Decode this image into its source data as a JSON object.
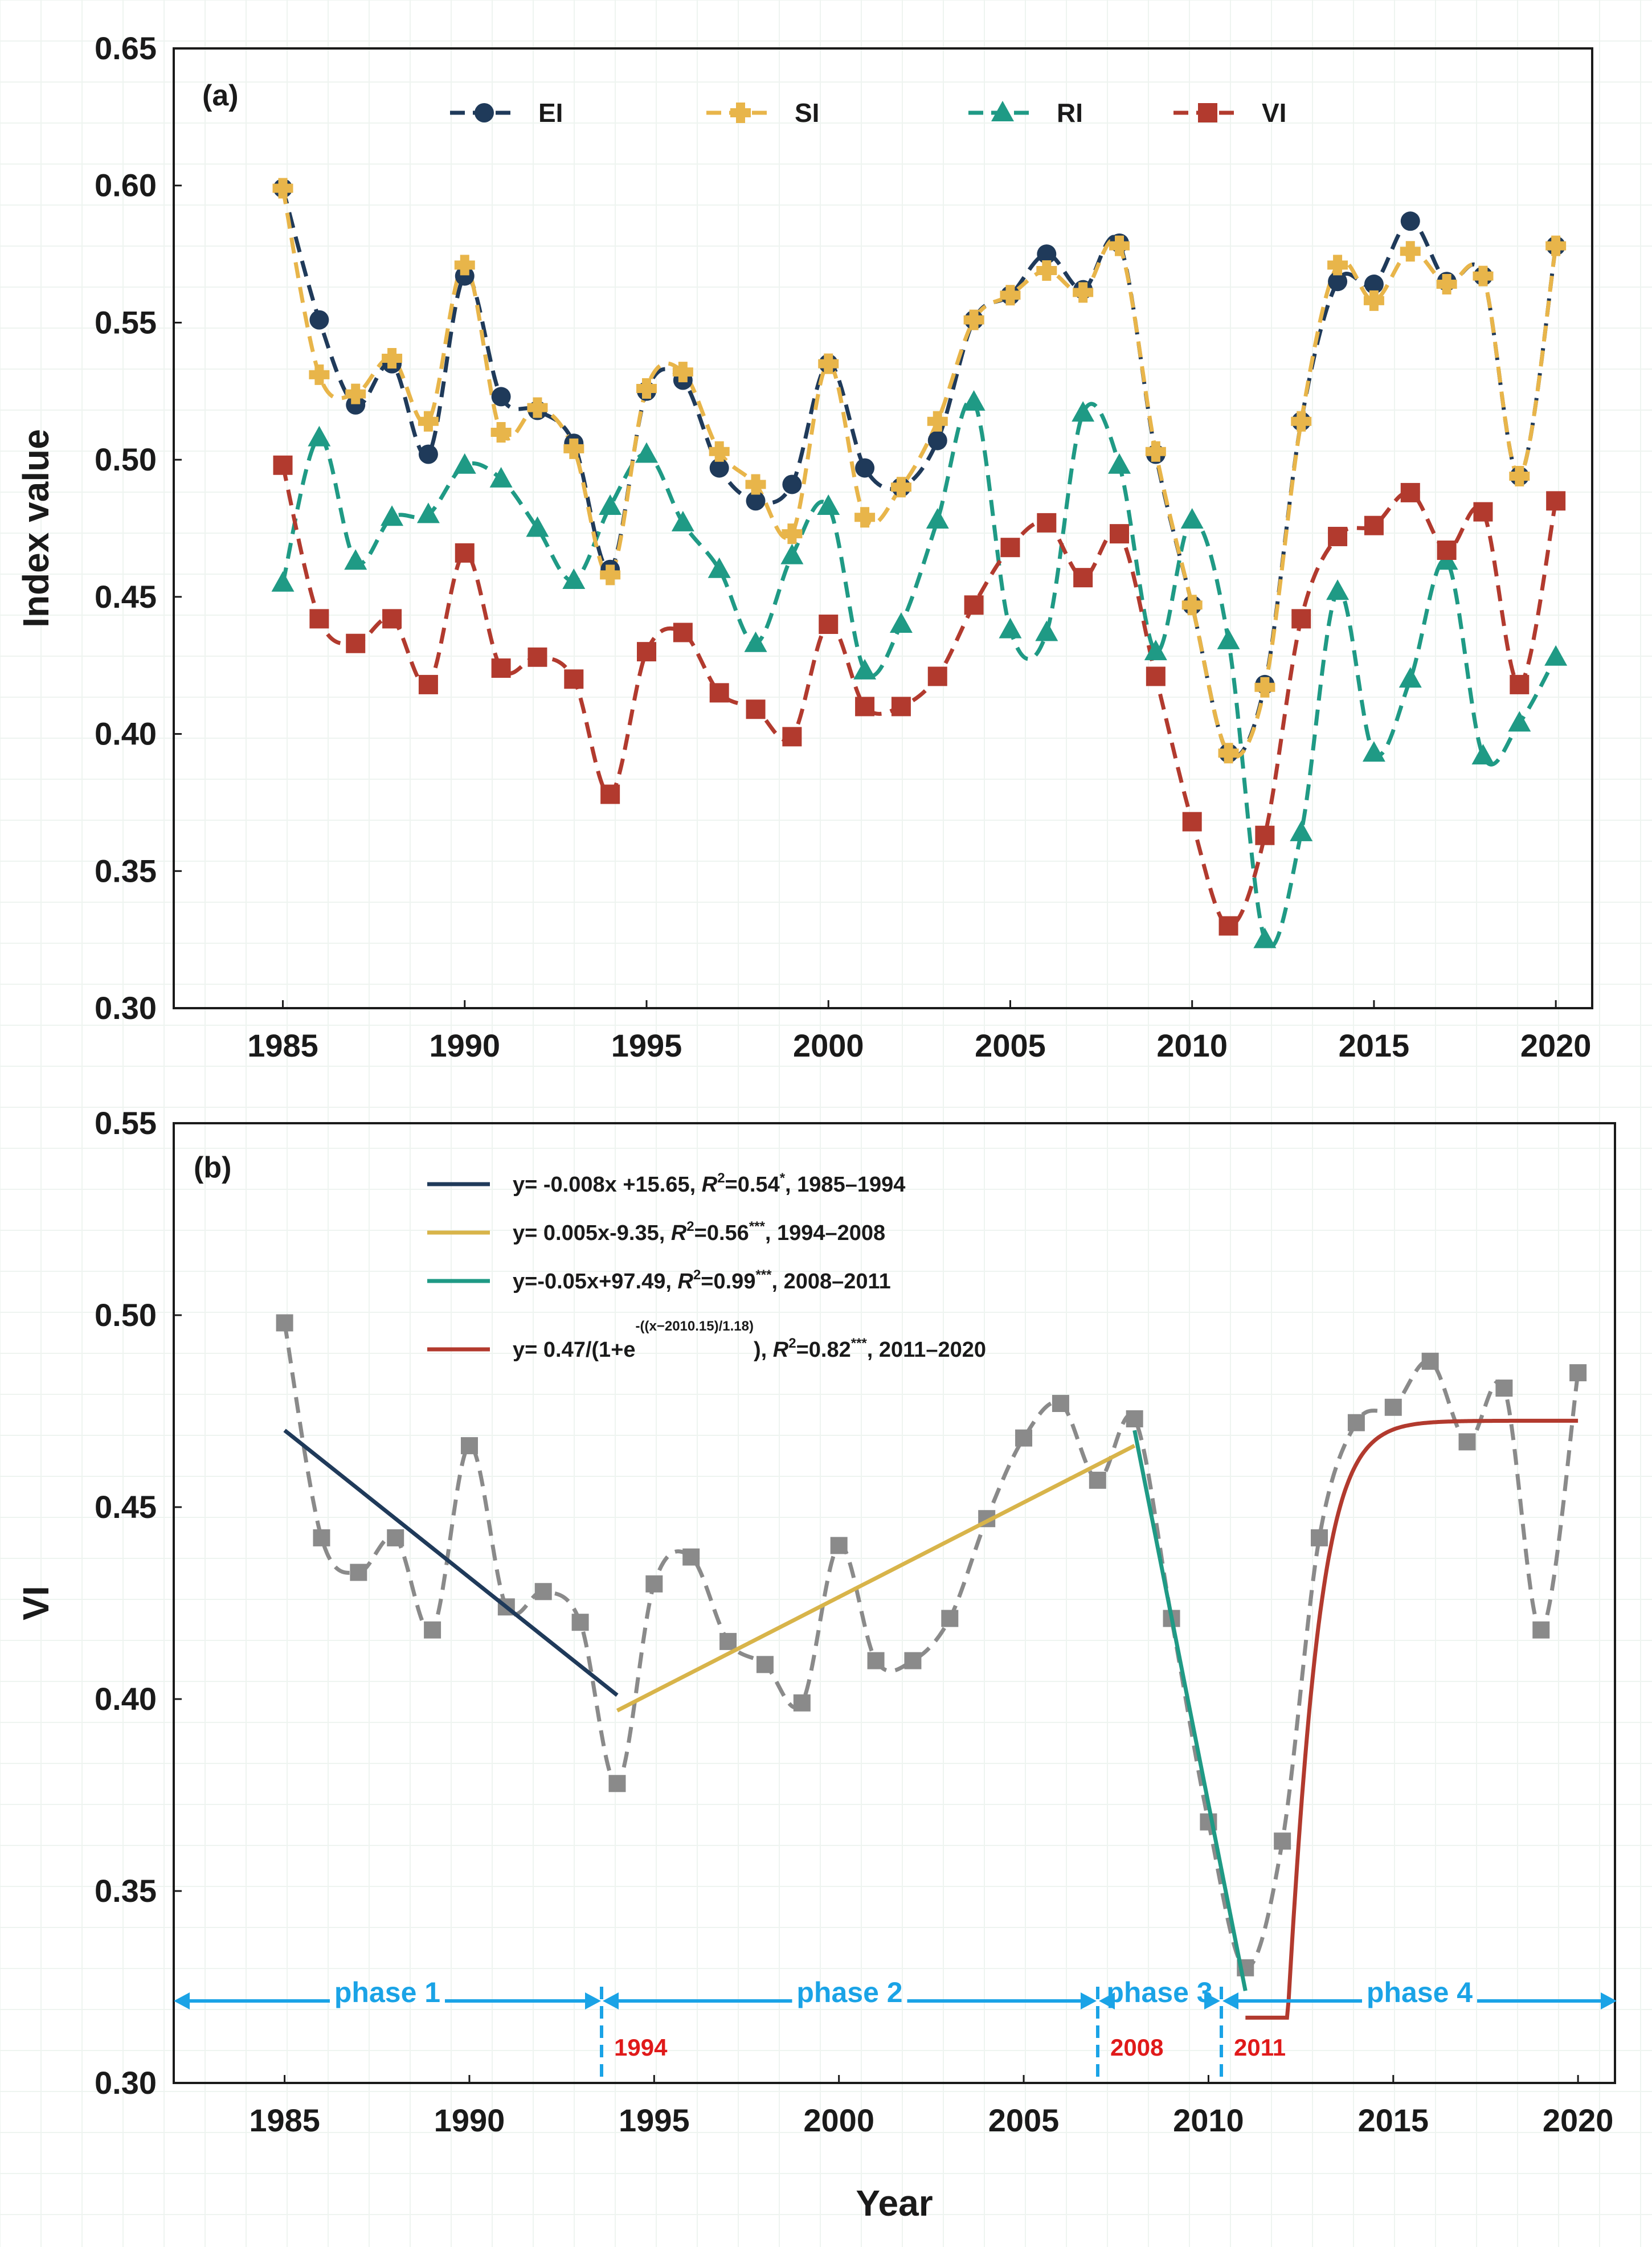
{
  "chart_data": [
    {
      "panel": "(a)",
      "type": "line",
      "ylabel": "Index value",
      "xlabel": "",
      "xlim": [
        1982,
        2021
      ],
      "ylim": [
        0.3,
        0.65
      ],
      "yticks": [
        "0.30",
        "0.35",
        "0.40",
        "0.45",
        "0.50",
        "0.55",
        "0.60",
        "0.65"
      ],
      "xticks": [
        "1985",
        "1990",
        "1995",
        "2000",
        "2005",
        "2010",
        "2015",
        "2020"
      ],
      "grid": true,
      "legend_position": "top",
      "x": [
        1985,
        1986,
        1987,
        1988,
        1989,
        1990,
        1991,
        1992,
        1993,
        1994,
        1995,
        1996,
        1997,
        1998,
        1999,
        2000,
        2001,
        2002,
        2003,
        2004,
        2005,
        2006,
        2007,
        2008,
        2009,
        2010,
        2011,
        2012,
        2013,
        2014,
        2015,
        2016,
        2017,
        2018,
        2019,
        2020
      ],
      "series": [
        {
          "name": "EI",
          "color": "#1f3a5a",
          "marker": "circle",
          "values": [
            0.599,
            0.551,
            0.52,
            0.535,
            0.502,
            0.567,
            0.523,
            0.518,
            0.506,
            0.46,
            0.525,
            0.529,
            0.497,
            0.485,
            0.491,
            0.535,
            0.497,
            0.49,
            0.507,
            0.551,
            0.56,
            0.575,
            0.562,
            0.579,
            0.502,
            0.447,
            0.393,
            0.418,
            0.514,
            0.565,
            0.564,
            0.587,
            0.565,
            0.567,
            0.494,
            0.578
          ]
        },
        {
          "name": "SI",
          "color": "#e8b54a",
          "marker": "cross",
          "values": [
            0.599,
            0.531,
            0.524,
            0.537,
            0.514,
            0.571,
            0.51,
            0.519,
            0.504,
            0.458,
            0.526,
            0.532,
            0.503,
            0.491,
            0.473,
            0.535,
            0.479,
            0.49,
            0.514,
            0.551,
            0.56,
            0.569,
            0.561,
            0.578,
            0.503,
            0.447,
            0.393,
            0.417,
            0.514,
            0.571,
            0.558,
            0.576,
            0.564,
            0.567,
            0.494,
            0.578
          ]
        },
        {
          "name": "RI",
          "color": "#1f9a85",
          "marker": "triangle",
          "values": [
            0.455,
            0.508,
            0.463,
            0.479,
            0.48,
            0.498,
            0.493,
            0.475,
            0.456,
            0.483,
            0.502,
            0.477,
            0.46,
            0.433,
            0.465,
            0.483,
            0.423,
            0.44,
            0.478,
            0.521,
            0.438,
            0.437,
            0.517,
            0.498,
            0.43,
            0.478,
            0.434,
            0.325,
            0.364,
            0.452,
            0.393,
            0.42,
            0.463,
            0.392,
            0.404,
            0.428
          ]
        },
        {
          "name": "VI",
          "color": "#b23a2e",
          "marker": "square",
          "values": [
            0.498,
            0.442,
            0.433,
            0.442,
            0.418,
            0.466,
            0.424,
            0.428,
            0.42,
            0.378,
            0.43,
            0.437,
            0.415,
            0.409,
            0.399,
            0.44,
            0.41,
            0.41,
            0.421,
            0.447,
            0.468,
            0.477,
            0.457,
            0.473,
            0.421,
            0.368,
            0.33,
            0.363,
            0.442,
            0.472,
            0.476,
            0.488,
            0.467,
            0.481,
            0.418,
            0.485
          ]
        }
      ]
    },
    {
      "panel": "(b)",
      "type": "line",
      "ylabel": "VI",
      "xlabel": "Year",
      "xlim": [
        1982,
        2021
      ],
      "ylim": [
        0.3,
        0.55
      ],
      "yticks": [
        "0.30",
        "0.35",
        "0.40",
        "0.45",
        "0.50",
        "0.55"
      ],
      "xticks": [
        "1985",
        "1990",
        "1995",
        "2000",
        "2005",
        "2010",
        "2015",
        "2020"
      ],
      "grid": true,
      "series_color": "#8a8a8a",
      "x": [
        1985,
        1986,
        1987,
        1988,
        1989,
        1990,
        1991,
        1992,
        1993,
        1994,
        1995,
        1996,
        1997,
        1998,
        1999,
        2000,
        2001,
        2002,
        2003,
        2004,
        2005,
        2006,
        2007,
        2008,
        2009,
        2010,
        2011,
        2012,
        2013,
        2014,
        2015,
        2016,
        2017,
        2018,
        2019,
        2020
      ],
      "values": [
        0.498,
        0.442,
        0.433,
        0.442,
        0.418,
        0.466,
        0.424,
        0.428,
        0.42,
        0.378,
        0.43,
        0.437,
        0.415,
        0.409,
        0.399,
        0.44,
        0.41,
        0.41,
        0.421,
        0.447,
        0.468,
        0.477,
        0.457,
        0.473,
        0.421,
        0.368,
        0.33,
        0.363,
        0.442,
        0.472,
        0.476,
        0.488,
        0.467,
        0.481,
        0.418,
        0.485
      ],
      "fits": [
        {
          "color": "#1f3a5a",
          "type": "linear",
          "x0": 1985,
          "x1": 1994,
          "y0": 0.47,
          "y1": 0.401,
          "eq": "y= -0.008x +15.65, ",
          "r2": "=0.54",
          "sig": "*",
          "period": ", 1985–1994"
        },
        {
          "color": "#d8b44a",
          "type": "linear",
          "x0": 1994,
          "x1": 2008,
          "y0": 0.397,
          "y1": 0.466,
          "eq": "y= 0.005x-9.35, ",
          "r2": "=0.56",
          "sig": "***",
          "period": ", 1994–2008"
        },
        {
          "color": "#1f9a85",
          "type": "linear",
          "x0": 2008,
          "x1": 2011,
          "y0": 0.47,
          "y1": 0.324,
          "eq": "y=-0.05x+97.49, ",
          "r2": "=0.99",
          "sig": "***",
          "period": ", 2008–2011"
        },
        {
          "color": "#b23a2e",
          "type": "logistic",
          "x0": 2011,
          "x1": 2020,
          "K": 0.4725,
          "x_mid": 2011.7,
          "scale": 0.62,
          "y_start": 0.317,
          "eq": "y= 0.47/(1+e",
          "exp": "-((x−2010.15)/1.18)",
          "eq_end": "), ",
          "r2": "=0.82",
          "sig": "***",
          "period": ", 2011–2020"
        }
      ],
      "phases": [
        {
          "label": "phase 1",
          "from": 1982,
          "to": 1994
        },
        {
          "label": "phase 2",
          "from": 1994,
          "to": 2008
        },
        {
          "label": "phase 3",
          "from": 2008,
          "to": 2011
        },
        {
          "label": "phase 4",
          "from": 2011,
          "to": 2021
        }
      ],
      "breakpoints": [
        {
          "x": 1994,
          "label": "1994"
        },
        {
          "x": 2008,
          "label": "2008"
        },
        {
          "x": 2011,
          "label": "2011"
        }
      ],
      "r2_symbol": "R",
      "r2_sup": "2"
    }
  ]
}
